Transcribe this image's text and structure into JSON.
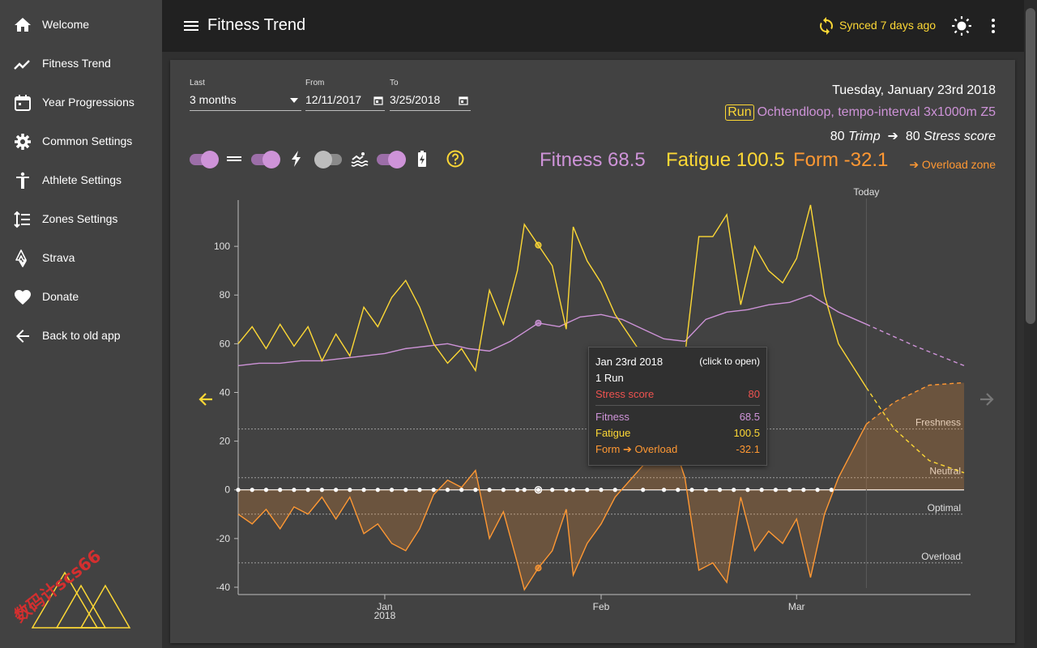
{
  "sidebar": {
    "items": [
      {
        "label": "Welcome",
        "icon": "home-icon"
      },
      {
        "label": "Fitness Trend",
        "icon": "trending-icon"
      },
      {
        "label": "Year Progressions",
        "icon": "calendar-icon"
      },
      {
        "label": "Common Settings",
        "icon": "gear-icon"
      },
      {
        "label": "Athlete Settings",
        "icon": "person-icon"
      },
      {
        "label": "Zones Settings",
        "icon": "zones-list-icon"
      },
      {
        "label": "Strava",
        "icon": "strava-icon"
      },
      {
        "label": "Donate",
        "icon": "heart-icon"
      },
      {
        "label": "Back to old app",
        "icon": "arrow-back-icon"
      }
    ],
    "logo_text": "数码计scs66"
  },
  "header": {
    "title": "Fitness Trend",
    "sync_status": "Synced 7 days ago"
  },
  "filters": {
    "last_label": "Last",
    "last_value": "3 months",
    "from_label": "From",
    "from_value": "12/11/2017",
    "to_label": "To",
    "to_value": "3/25/2018"
  },
  "info": {
    "date": "Tuesday, January 23rd 2018",
    "activity_type": "Run",
    "activity_name": "Ochtendloop, tempo-interval 3x1000m Z5",
    "trimp_value": "80",
    "trimp_label": "Trimp",
    "arrow": "➔",
    "stress_value": "80",
    "stress_label": "Stress score"
  },
  "summary": {
    "fitness": "Fitness 68.5",
    "fatigue": "Fatigue 100.5",
    "form": "Form -32.1",
    "zone": "➔ Overload zone"
  },
  "tooltip": {
    "date": "Jan 23rd 2018",
    "hint": "(click to open)",
    "count": "1 Run",
    "stress_label": "Stress score",
    "stress_value": "80",
    "fitness_label": "Fitness",
    "fitness_value": "68.5",
    "fatigue_label": "Fatigue",
    "fatigue_value": "100.5",
    "form_label": "Form ➔ Overload",
    "form_value": "-32.1"
  },
  "colors": {
    "fitness": "#ce93d8",
    "fatigue": "#fdd835",
    "form": "#ff9833",
    "stress": "#ef5350"
  },
  "chart_data": {
    "type": "line",
    "x_axis": {
      "type": "time",
      "start": "2017-12-11",
      "end": "2018-03-25",
      "ticks": [
        {
          "label": "Jan",
          "sub": "2018",
          "date": "2018-01-01"
        },
        {
          "label": "Feb",
          "date": "2018-02-01"
        },
        {
          "label": "Mar",
          "date": "2018-03-01"
        }
      ]
    },
    "today": {
      "label": "Today",
      "date": "2018-03-11"
    },
    "ylim": [
      -43,
      119
    ],
    "y_ticks": [
      -40,
      -20,
      0,
      20,
      40,
      60,
      80,
      100
    ],
    "zones": [
      {
        "name": "Freshness",
        "value": 25
      },
      {
        "name": "Neutral",
        "value": 5
      },
      {
        "name": "Optimal",
        "value": -10
      },
      {
        "name": "Overload",
        "value": -30
      }
    ],
    "series": [
      {
        "name": "Fitness",
        "color": "#ce93d8",
        "points": [
          [
            "2017-12-11",
            51
          ],
          [
            "2017-12-14",
            52
          ],
          [
            "2017-12-17",
            52
          ],
          [
            "2017-12-20",
            53
          ],
          [
            "2017-12-23",
            53
          ],
          [
            "2017-12-26",
            54
          ],
          [
            "2017-12-29",
            55
          ],
          [
            "2018-01-01",
            56
          ],
          [
            "2018-01-04",
            58
          ],
          [
            "2018-01-07",
            59
          ],
          [
            "2018-01-10",
            60
          ],
          [
            "2018-01-13",
            58
          ],
          [
            "2018-01-16",
            57
          ],
          [
            "2018-01-19",
            61
          ],
          [
            "2018-01-23",
            68.5
          ],
          [
            "2018-01-26",
            67
          ],
          [
            "2018-01-29",
            71
          ],
          [
            "2018-02-01",
            72
          ],
          [
            "2018-02-04",
            70
          ],
          [
            "2018-02-07",
            66
          ],
          [
            "2018-02-10",
            62
          ],
          [
            "2018-02-13",
            61
          ],
          [
            "2018-02-16",
            70
          ],
          [
            "2018-02-19",
            73
          ],
          [
            "2018-02-22",
            74
          ],
          [
            "2018-02-25",
            76
          ],
          [
            "2018-02-28",
            77
          ],
          [
            "2018-03-03",
            80
          ],
          [
            "2018-03-07",
            73
          ],
          [
            "2018-03-11",
            68
          ]
        ]
      },
      {
        "name": "Fatigue",
        "color": "#fdd835",
        "points": [
          [
            "2017-12-11",
            60
          ],
          [
            "2017-12-13",
            67
          ],
          [
            "2017-12-15",
            58
          ],
          [
            "2017-12-17",
            68
          ],
          [
            "2017-12-19",
            59
          ],
          [
            "2017-12-21",
            67
          ],
          [
            "2017-12-23",
            53
          ],
          [
            "2017-12-25",
            64
          ],
          [
            "2017-12-27",
            55
          ],
          [
            "2017-12-29",
            75
          ],
          [
            "2017-12-31",
            67
          ],
          [
            "2018-01-02",
            79
          ],
          [
            "2018-01-04",
            86
          ],
          [
            "2018-01-06",
            75
          ],
          [
            "2018-01-08",
            60
          ],
          [
            "2018-01-10",
            52
          ],
          [
            "2018-01-12",
            58
          ],
          [
            "2018-01-14",
            49
          ],
          [
            "2018-01-16",
            82
          ],
          [
            "2018-01-18",
            68
          ],
          [
            "2018-01-20",
            90
          ],
          [
            "2018-01-21",
            109
          ],
          [
            "2018-01-23",
            100.5
          ],
          [
            "2018-01-25",
            92
          ],
          [
            "2018-01-27",
            66
          ],
          [
            "2018-01-28",
            108
          ],
          [
            "2018-01-30",
            94
          ],
          [
            "2018-02-01",
            85
          ],
          [
            "2018-02-03",
            72
          ],
          [
            "2018-02-07",
            55
          ],
          [
            "2018-02-10",
            32
          ],
          [
            "2018-02-13",
            55
          ],
          [
            "2018-02-15",
            104
          ],
          [
            "2018-02-17",
            104
          ],
          [
            "2018-02-19",
            113
          ],
          [
            "2018-02-21",
            76
          ],
          [
            "2018-02-23",
            100
          ],
          [
            "2018-02-25",
            90
          ],
          [
            "2018-02-27",
            85
          ],
          [
            "2018-03-01",
            95
          ],
          [
            "2018-03-03",
            117
          ],
          [
            "2018-03-05",
            80
          ],
          [
            "2018-03-07",
            60
          ],
          [
            "2018-03-11",
            42
          ]
        ]
      },
      {
        "name": "Form",
        "color": "#ff9833",
        "points": [
          [
            "2017-12-11",
            -10
          ],
          [
            "2017-12-13",
            -14
          ],
          [
            "2017-12-15",
            -8
          ],
          [
            "2017-12-17",
            -16
          ],
          [
            "2017-12-19",
            -7
          ],
          [
            "2017-12-21",
            -10
          ],
          [
            "2017-12-23",
            -3
          ],
          [
            "2017-12-25",
            -12
          ],
          [
            "2017-12-27",
            -3
          ],
          [
            "2017-12-29",
            -18
          ],
          [
            "2017-12-31",
            -14
          ],
          [
            "2018-01-02",
            -22
          ],
          [
            "2018-01-04",
            -25
          ],
          [
            "2018-01-06",
            -16
          ],
          [
            "2018-01-08",
            -2
          ],
          [
            "2018-01-10",
            4
          ],
          [
            "2018-01-12",
            1
          ],
          [
            "2018-01-14",
            8
          ],
          [
            "2018-01-16",
            -20
          ],
          [
            "2018-01-18",
            -9
          ],
          [
            "2018-01-20",
            -30
          ],
          [
            "2018-01-21",
            -41
          ],
          [
            "2018-01-23",
            -32.1
          ],
          [
            "2018-01-25",
            -25
          ],
          [
            "2018-01-27",
            -8
          ],
          [
            "2018-01-28",
            -35
          ],
          [
            "2018-01-30",
            -22
          ],
          [
            "2018-02-01",
            -14
          ],
          [
            "2018-02-03",
            -3
          ],
          [
            "2018-02-07",
            10
          ],
          [
            "2018-02-10",
            31
          ],
          [
            "2018-02-13",
            5
          ],
          [
            "2018-02-15",
            -33
          ],
          [
            "2018-02-17",
            -30
          ],
          [
            "2018-02-19",
            -38
          ],
          [
            "2018-02-21",
            -3
          ],
          [
            "2018-02-23",
            -25
          ],
          [
            "2018-02-25",
            -17
          ],
          [
            "2018-02-27",
            -22
          ],
          [
            "2018-03-01",
            -12
          ],
          [
            "2018-03-03",
            -36
          ],
          [
            "2018-03-05",
            -10
          ],
          [
            "2018-03-07",
            5
          ],
          [
            "2018-03-11",
            27
          ]
        ]
      },
      {
        "name": "Fitness projection",
        "color": "#ce93d8",
        "dashed": true,
        "points": [
          [
            "2018-03-11",
            68
          ],
          [
            "2018-03-18",
            59
          ],
          [
            "2018-03-25",
            51
          ]
        ]
      },
      {
        "name": "Fatigue projection",
        "color": "#fdd835",
        "dashed": true,
        "points": [
          [
            "2018-03-11",
            42
          ],
          [
            "2018-03-15",
            25
          ],
          [
            "2018-03-20",
            12
          ],
          [
            "2018-03-25",
            7
          ]
        ]
      },
      {
        "name": "Form projection",
        "color": "#ff9833",
        "dashed": true,
        "points": [
          [
            "2018-03-11",
            27
          ],
          [
            "2018-03-15",
            36
          ],
          [
            "2018-03-20",
            43
          ],
          [
            "2018-03-25",
            44
          ]
        ]
      }
    ],
    "activity_dates": [
      "2017-12-11",
      "2017-12-13",
      "2017-12-15",
      "2017-12-17",
      "2017-12-19",
      "2017-12-21",
      "2017-12-23",
      "2017-12-25",
      "2017-12-27",
      "2017-12-29",
      "2017-12-31",
      "2018-01-02",
      "2018-01-04",
      "2018-01-06",
      "2018-01-08",
      "2018-01-10",
      "2018-01-12",
      "2018-01-14",
      "2018-01-16",
      "2018-01-18",
      "2018-01-20",
      "2018-01-21",
      "2018-01-23",
      "2018-01-25",
      "2018-01-27",
      "2018-01-28",
      "2018-01-30",
      "2018-02-01",
      "2018-02-03",
      "2018-02-07",
      "2018-02-10",
      "2018-02-12",
      "2018-02-14",
      "2018-02-16",
      "2018-02-18",
      "2018-02-20",
      "2018-02-22",
      "2018-02-24",
      "2018-02-26",
      "2018-02-28",
      "2018-03-02",
      "2018-03-04",
      "2018-03-06"
    ],
    "selected_date": "2018-01-23"
  }
}
